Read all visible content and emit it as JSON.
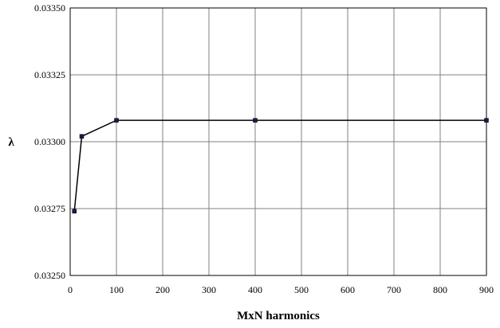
{
  "chart_data": {
    "type": "line",
    "title": "",
    "xlabel": "MxN harmonics",
    "ylabel": "λ",
    "xlim": [
      0,
      900
    ],
    "ylim": [
      0.0325,
      0.0335
    ],
    "x_ticks": [
      "0",
      "100",
      "200",
      "300",
      "400",
      "500",
      "600",
      "700",
      "800",
      "900"
    ],
    "y_ticks": [
      "0.03250",
      "0.03275",
      "0.03300",
      "0.03325",
      "0.03350"
    ],
    "grid": true,
    "legend": "none",
    "series": [
      {
        "x": [
          9,
          25,
          100,
          400,
          900
        ],
        "values": [
          0.03274,
          0.03302,
          0.03308,
          0.03308,
          0.03308
        ],
        "line_color": "#000000",
        "marker_color": "#1a1a50"
      }
    ]
  }
}
